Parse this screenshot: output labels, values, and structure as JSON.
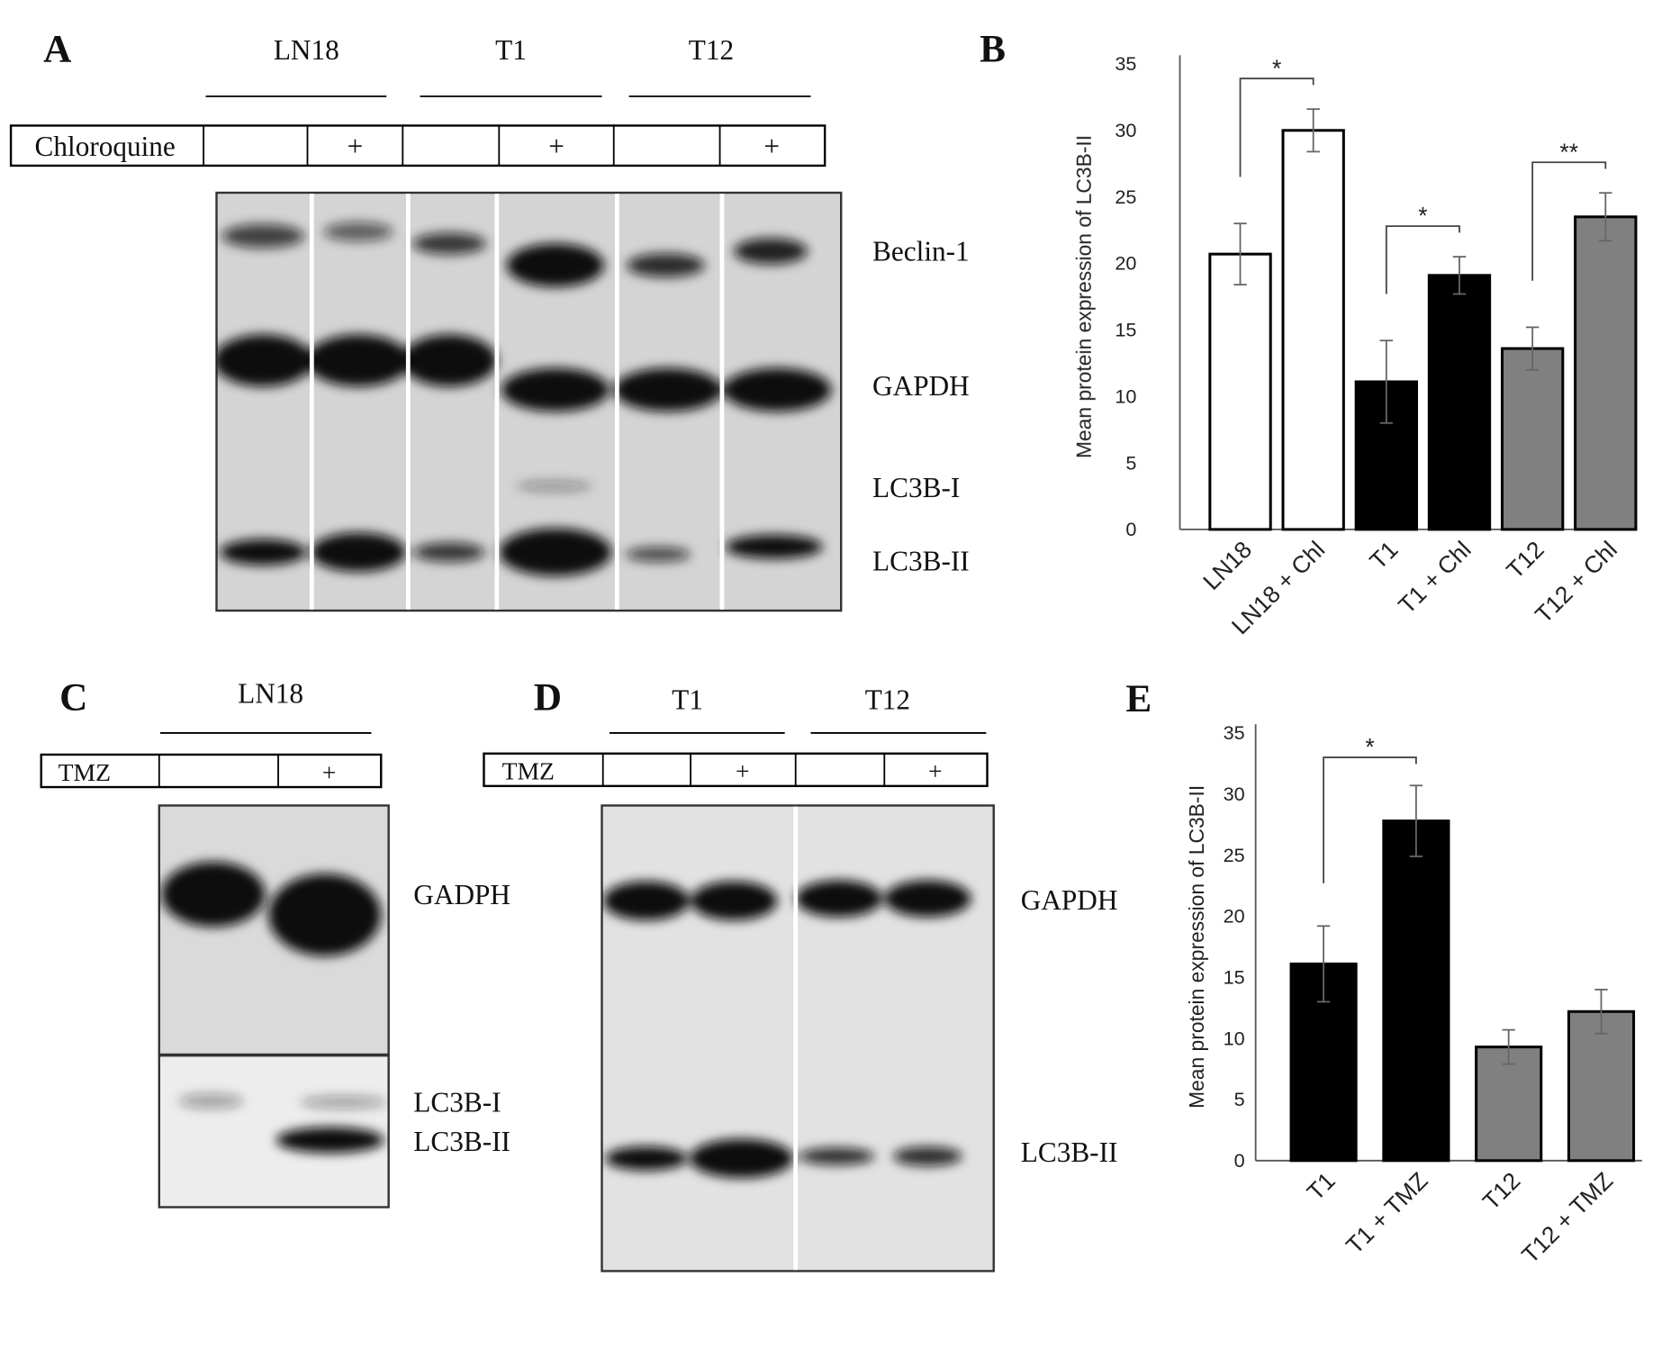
{
  "blots": [
    {
      "panel": "A",
      "groups": [
        "LN18",
        "T1",
        "T12"
      ],
      "treatment": "Chloroquine",
      "plus": "+",
      "bands": [
        "Beclin-1",
        "GAPDH",
        "LC3B-I",
        "LC3B-II"
      ]
    },
    {
      "panel": "C",
      "groups": [
        "LN18"
      ],
      "treatment": "TMZ",
      "plus": "+",
      "bands": [
        "GADPH",
        "LC3B-I",
        "LC3B-II"
      ]
    },
    {
      "panel": "D",
      "groups": [
        "T1",
        "T12"
      ],
      "treatment": "TMZ",
      "plus": "+",
      "bands": [
        "GAPDH",
        "LC3B-II"
      ]
    }
  ],
  "chart_data": [
    {
      "type": "bar",
      "panel": "B",
      "ylabel": "Mean protein expression of LC3B-II",
      "categories": [
        "LN18",
        "LN18 + Chl",
        "T1",
        "T1 + Chl",
        "T12",
        "T12 + Chl"
      ],
      "values": [
        20.7,
        30,
        11.1,
        19.1,
        13.6,
        23.5
      ],
      "errors": [
        2.3,
        1.6,
        3.1,
        1.4,
        1.6,
        1.8
      ],
      "colors": [
        "#ffffff",
        "#ffffff",
        "#000000",
        "#000000",
        "#808080",
        "#808080"
      ],
      "ylim": [
        0,
        35
      ],
      "yticks": [
        0,
        5,
        10,
        15,
        20,
        25,
        30,
        35
      ],
      "grid": false,
      "comparisons": [
        {
          "label": "*",
          "pair": [
            "LN18",
            "LN18 + Chl"
          ]
        },
        {
          "label": "*",
          "pair": [
            "T1",
            "T1 + Chl"
          ]
        },
        {
          "label": "**",
          "pair": [
            "T12",
            "T12 + Chl"
          ]
        }
      ]
    },
    {
      "type": "bar",
      "panel": "E",
      "ylabel": "Mean protein expression of LC3B-II",
      "categories": [
        "T1",
        "T1 + TMZ",
        "T12",
        "T12 + TMZ"
      ],
      "values": [
        16.1,
        27.8,
        9.3,
        12.2
      ],
      "errors": [
        3.1,
        2.9,
        1.4,
        1.8
      ],
      "colors": [
        "#000000",
        "#000000",
        "#808080",
        "#808080"
      ],
      "ylim": [
        0,
        35
      ],
      "yticks": [
        0,
        5,
        10,
        15,
        20,
        25,
        30,
        35
      ],
      "grid": false,
      "comparisons": [
        {
          "label": "*",
          "pair": [
            "T1",
            "T1 + TMZ"
          ]
        }
      ]
    }
  ]
}
